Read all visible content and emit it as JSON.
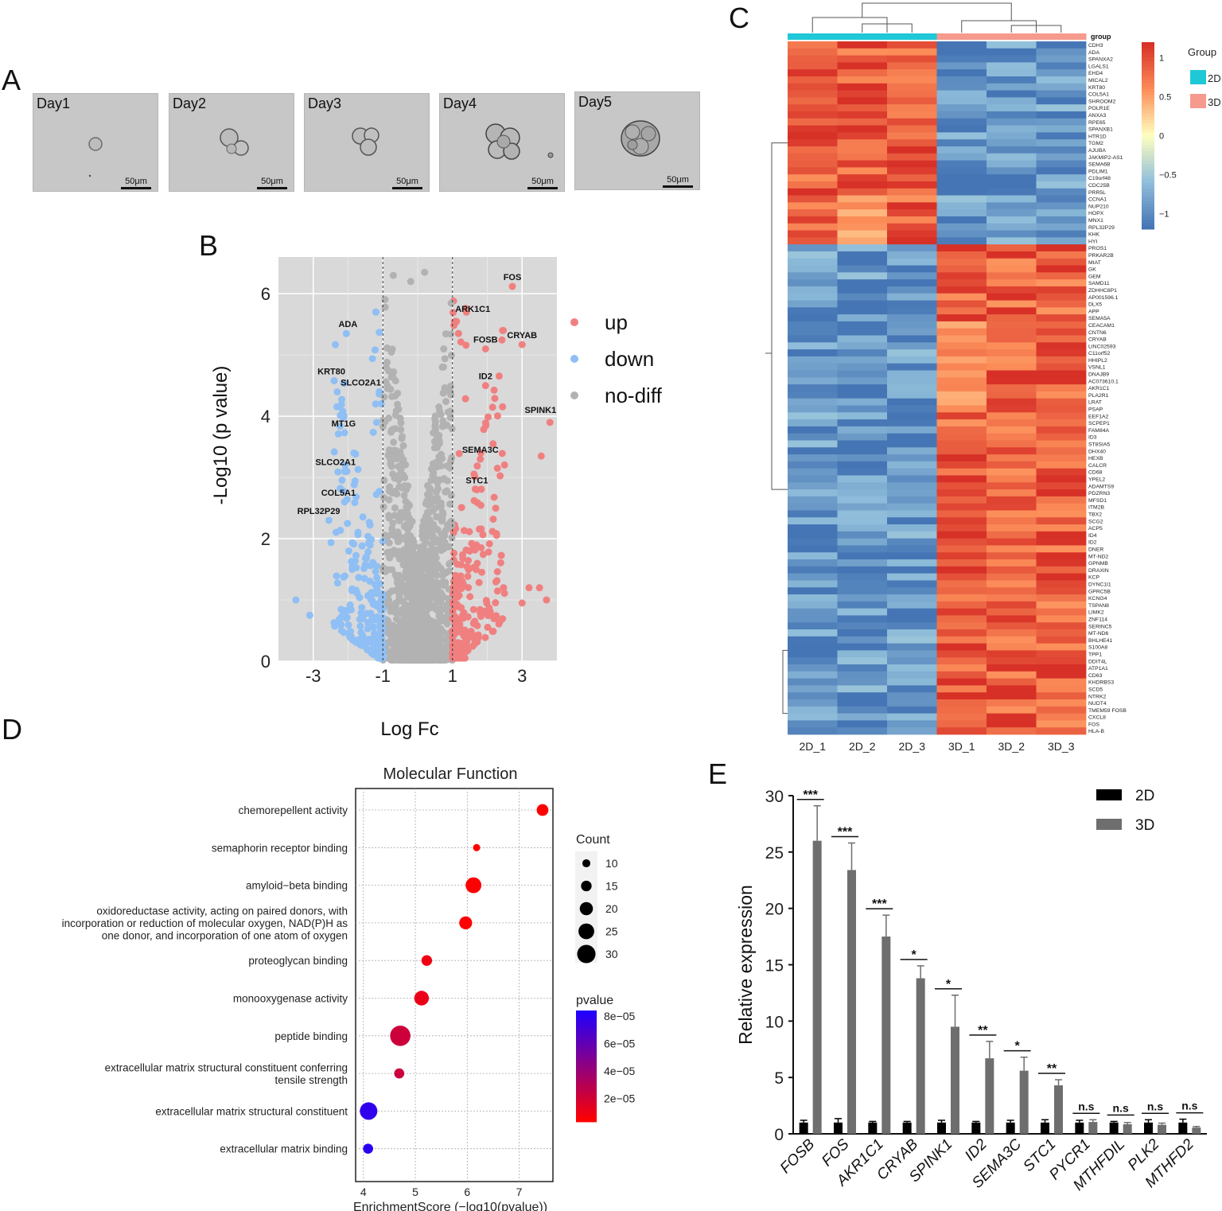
{
  "panels": {
    "a": "A",
    "b": "B",
    "c": "C",
    "d": "D",
    "e": "E"
  },
  "panel_a": {
    "days": [
      "Day1",
      "Day2",
      "Day3",
      "Day4",
      "Day5"
    ],
    "scale_bar": "50μm"
  },
  "chart_data": [
    {
      "id": "volcano",
      "type": "scatter",
      "title": "",
      "xlabel": "Log Fc",
      "ylabel": "-Log10 (p value)",
      "xlim": [
        -4.0,
        4.0
      ],
      "ylim": [
        0,
        6.6
      ],
      "xticks": [
        -3,
        -1,
        1,
        3
      ],
      "yticks": [
        0,
        2,
        4,
        6
      ],
      "thresholds": [
        -1,
        1
      ],
      "legend": [
        {
          "name": "up",
          "color": "#f08080"
        },
        {
          "name": "down",
          "color": "#8fbff4"
        },
        {
          "name": "no-diff",
          "color": "#b2b2b2"
        }
      ],
      "labeled_points": [
        {
          "label": "FOS",
          "x": 2.72,
          "y": 6.12,
          "group": "up"
        },
        {
          "label": "ARK1C1",
          "x": 1.08,
          "y": 5.55,
          "group": "up"
        },
        {
          "label": "CRYAB",
          "x": 3.0,
          "y": 5.17,
          "group": "up"
        },
        {
          "label": "FOSB",
          "x": 1.95,
          "y": 5.1,
          "group": "up"
        },
        {
          "label": "ID2",
          "x": 1.95,
          "y": 4.5,
          "group": "up"
        },
        {
          "label": "SPINK1",
          "x": 3.8,
          "y": 3.9,
          "group": "up"
        },
        {
          "label": "SEMA3C",
          "x": 1.8,
          "y": 3.3,
          "group": "up"
        },
        {
          "label": "STC1",
          "x": 1.7,
          "y": 2.8,
          "group": "up"
        },
        {
          "label": "ADA",
          "x": -2.05,
          "y": 5.35,
          "group": "down"
        },
        {
          "label": "KRT80",
          "x": -2.4,
          "y": 4.58,
          "group": "down"
        },
        {
          "label": "SLCO2A1",
          "x": -1.1,
          "y": 4.4,
          "group": "down"
        },
        {
          "label": "MT1G",
          "x": -2.1,
          "y": 3.73,
          "group": "down"
        },
        {
          "label": "SLCO2A1",
          "x": -2.1,
          "y": 3.1,
          "group": "down"
        },
        {
          "label": "COL5A1",
          "x": -2.1,
          "y": 2.6,
          "group": "down"
        },
        {
          "label": "RPL32P29",
          "x": -2.55,
          "y": 2.3,
          "group": "down"
        }
      ],
      "extra_points": [
        {
          "x": 0.2,
          "y": 6.35,
          "group": "no-diff"
        },
        {
          "x": -0.7,
          "y": 6.3,
          "group": "no-diff"
        },
        {
          "x": -0.2,
          "y": 6.2,
          "group": "no-diff"
        },
        {
          "x": -1.2,
          "y": 5.7,
          "group": "down"
        },
        {
          "x": 1.4,
          "y": 5.7,
          "group": "up"
        },
        {
          "x": 3.55,
          "y": 3.35,
          "group": "up"
        },
        {
          "x": 3.7,
          "y": 1.0,
          "group": "up"
        },
        {
          "x": 3.2,
          "y": 1.2,
          "group": "up"
        },
        {
          "x": -3.5,
          "y": 1.0,
          "group": "down"
        },
        {
          "x": -3.1,
          "y": 0.75,
          "group": "down"
        },
        {
          "x": 3.0,
          "y": 0.95,
          "group": "up"
        },
        {
          "x": 3.5,
          "y": 1.2,
          "group": "up"
        }
      ]
    },
    {
      "id": "heatmap",
      "type": "heatmap",
      "columns": [
        "2D_1",
        "2D_2",
        "2D_3",
        "3D_1",
        "3D_2",
        "3D_3"
      ],
      "column_groups": [
        "2D",
        "2D",
        "2D",
        "3D",
        "3D",
        "3D"
      ],
      "group_header": "group",
      "legend_title": "Group",
      "groups": [
        {
          "name": "2D",
          "color": "#1fc8d6"
        },
        {
          "name": "3D",
          "color": "#f59a8c"
        }
      ],
      "colorbar_ticks": [
        1,
        0.5,
        0,
        -0.5,
        -1
      ],
      "colorbar_range": [
        -1.2,
        1.2
      ],
      "rows_down": [
        "CDH3",
        "ADA",
        "SPANXA2",
        "LGALS1",
        "EHD4",
        "MICAL2",
        "KRT80",
        "COL5A1",
        "SHROOM2",
        "POLR1E",
        "ANXA3",
        "RPE65",
        "SPANXB1",
        "HTR1D",
        "TGM2",
        "AJUBA",
        "JAKMIP2-AS1",
        "SEMA6B",
        "PDLIM1",
        "C19orf48",
        "CDC25B",
        "PRR5L",
        "CCNA1",
        "NUP210",
        "HOPX",
        "MNX1",
        "RPL32P29",
        "KHK",
        "HYI"
      ],
      "rows_up": [
        "PROS1",
        "PRKAR2B",
        "MIAT",
        "GK",
        "GEM",
        "SAMD11",
        "ZDHHC8P1",
        "AP001596.1",
        "DLX5",
        "APP",
        "SEMA5A",
        "CEACAM1",
        "CNTN6",
        "CRYAB",
        "LINC02593",
        "C11orf52",
        "HHIPL2",
        "VSNL1",
        "DNAJB9",
        "AC073610.1",
        "AKR1C1",
        "PLA2R1",
        "LRAT",
        "PSAP",
        "EEF1A2",
        "SCPEP1",
        "FAM84A",
        "ID3",
        "ST8SIA5",
        "DHX40",
        "HEXB",
        "CALCR",
        "CD68",
        "YPEL2",
        "ADAMTS9",
        "PDZRN3",
        "MFSD1",
        "ITM2B",
        "TBX2",
        "SCG2",
        "ACP5",
        "ID4",
        "ID2",
        "DNER",
        "MT-ND2",
        "GPNMB",
        "DRAXIN",
        "KCP",
        "DYNC1I1",
        "GPRC5B",
        "KCNG4",
        "TSPAN8",
        "LIMK2",
        "ZNF114",
        "SERINC5",
        "MT-ND6",
        "BHLHE41",
        "S100A8",
        "TPP1",
        "DDIT4L",
        "ATP1A1",
        "CD63",
        "KHDRBS3",
        "SCD5",
        "NTRK2",
        "NUDT4",
        "TMEM59 FOSB",
        "CXCL8",
        "FOS",
        "HLA-B"
      ]
    },
    {
      "id": "go_enrichment",
      "type": "scatter",
      "title": "Molecular Function",
      "xlabel": "EnrichmentScore (−log10(pvalue))",
      "xlim": [
        3.85,
        7.65
      ],
      "xticks": [
        4,
        5,
        6,
        7
      ],
      "size_legend_title": "Count",
      "size_legend": [
        10,
        15,
        20,
        25,
        30
      ],
      "color_legend_title": "pvalue",
      "color_legend": [
        "8e−05",
        "6e−05",
        "4e−05",
        "2e−05"
      ],
      "terms": [
        {
          "label": [
            "chemorepellent activity"
          ],
          "score": 7.45,
          "count": 15,
          "pvalue": 3.5e-08
        },
        {
          "label": [
            "semaphorin receptor binding"
          ],
          "score": 6.18,
          "count": 7,
          "pvalue": 6.6e-07
        },
        {
          "label": [
            "amyloid−beta binding"
          ],
          "score": 6.12,
          "count": 22,
          "pvalue": 7.6e-07
        },
        {
          "label": [
            "oxidoreductase activity, acting on paired donors, with",
            "incorporation or reduction of molecular oxygen, NAD(P)H as",
            "one donor, and incorporation of one atom of oxygen"
          ],
          "score": 5.97,
          "count": 17,
          "pvalue": 1.07e-06
        },
        {
          "label": [
            "proteoglycan binding"
          ],
          "score": 5.22,
          "count": 13,
          "pvalue": 6e-06
        },
        {
          "label": [
            "monooxygenase activity"
          ],
          "score": 5.12,
          "count": 20,
          "pvalue": 7.6e-06
        },
        {
          "label": [
            "peptide binding"
          ],
          "score": 4.71,
          "count": 30,
          "pvalue": 1.95e-05
        },
        {
          "label": [
            "extracellular matrix structural constituent conferring",
            "tensile strength"
          ],
          "score": 4.69,
          "count": 12,
          "pvalue": 2e-05
        },
        {
          "label": [
            "extracellular matrix structural constituent"
          ],
          "score": 4.1,
          "count": 25,
          "pvalue": 7.9e-05
        },
        {
          "label": [
            "extracellular matrix binding"
          ],
          "score": 4.09,
          "count": 12,
          "pvalue": 8.1e-05
        }
      ]
    },
    {
      "id": "qpcr",
      "type": "bar",
      "ylabel": "Relative expression",
      "ylim": [
        0,
        30
      ],
      "yticks": [
        0,
        5,
        10,
        15,
        20,
        25,
        30
      ],
      "categories": [
        "FOSB",
        "FOS",
        "AKR1C1",
        "CRYAB",
        "SPINK1",
        "ID2",
        "SEMA3C",
        "STC1",
        "PYCR1",
        "MTHFDIL",
        "PLK2",
        "MTHFD2"
      ],
      "series": [
        {
          "name": "2D",
          "color": "#000000",
          "values": [
            1,
            1,
            1,
            1,
            1,
            1,
            1,
            1,
            1,
            1,
            1,
            1
          ],
          "errors": [
            0.2,
            0.35,
            0.1,
            0.1,
            0.2,
            0.1,
            0.2,
            0.25,
            0.2,
            0.1,
            0.25,
            0.3
          ]
        },
        {
          "name": "3D",
          "color": "#6e6e6e",
          "values": [
            26,
            23.4,
            17.5,
            13.8,
            9.5,
            6.7,
            5.6,
            4.3,
            1.05,
            0.85,
            0.8,
            0.55
          ],
          "errors": [
            3.1,
            2.4,
            1.9,
            1.1,
            2.8,
            1.5,
            1.2,
            0.5,
            0.2,
            0.15,
            0.15,
            0.1
          ]
        }
      ],
      "significance": [
        "***",
        "***",
        "***",
        "*",
        "*",
        "**",
        "*",
        "**",
        "n.s",
        "n.s",
        "n.s",
        "n.s"
      ]
    }
  ]
}
